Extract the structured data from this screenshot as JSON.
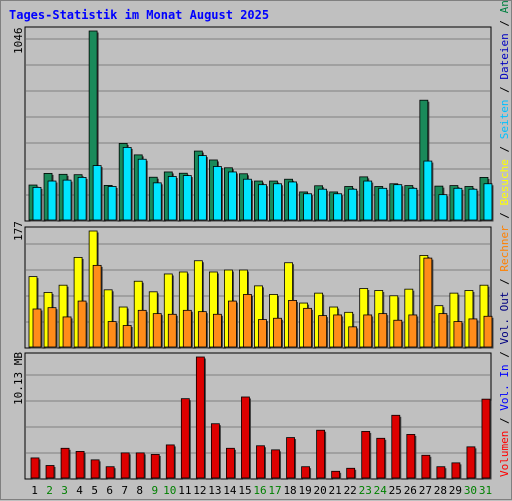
{
  "title": "Tages-Statistik im Monat August 2025",
  "y_labels": {
    "top": "1046",
    "middle": "177",
    "bottom": "10.13 MB"
  },
  "legend": [
    {
      "label": "Volumen",
      "color": "#ff0000"
    },
    {
      "sep": "/"
    },
    {
      "label": "Vol. In",
      "color": "#0000ff"
    },
    {
      "sep": "/"
    },
    {
      "label": "Vol. Out",
      "color": "#000080"
    },
    {
      "sep": "/"
    },
    {
      "label": "Rechner",
      "color": "#ff8000"
    },
    {
      "sep": "/"
    },
    {
      "label": "Besuche",
      "color": "#ffff00"
    },
    {
      "sep": "/"
    },
    {
      "label": "Seiten",
      "color": "#00c0ff"
    },
    {
      "sep": "/"
    },
    {
      "label": "Dateien",
      "color": "#0000c0"
    },
    {
      "sep": "/"
    },
    {
      "label": "Anfragen",
      "color": "#008040"
    }
  ],
  "colors": {
    "anfragen": "#1a8a5a",
    "seiten": "#00e5ff",
    "besuche": "#ffff00",
    "rechner": "#ff8c1a",
    "volumen": "#dd0000",
    "weekday_label": "#000000",
    "weekend_label": "#008000"
  },
  "chart_data": [
    {
      "type": "bar",
      "panel": "Anfragen / Dateien / Seiten",
      "ylabel": "1046",
      "ylim": [
        0,
        1046
      ],
      "x": [
        "1",
        "2",
        "3",
        "4",
        "5",
        "6",
        "7",
        "8",
        "9",
        "10",
        "11",
        "12",
        "13",
        "14",
        "15",
        "16",
        "17",
        "18",
        "19",
        "20",
        "21",
        "22",
        "23",
        "24",
        "25",
        "26",
        "27",
        "28",
        "29",
        "30",
        "31"
      ],
      "weekend": [
        false,
        true,
        true,
        false,
        false,
        false,
        false,
        false,
        true,
        true,
        false,
        false,
        false,
        false,
        false,
        true,
        true,
        false,
        false,
        false,
        false,
        false,
        true,
        true,
        false,
        false,
        false,
        false,
        false,
        true,
        true
      ],
      "series": [
        {
          "name": "Anfragen",
          "values": [
            198,
            262,
            257,
            255,
            1046,
            196,
            427,
            364,
            241,
            270,
            263,
            385,
            336,
            293,
            260,
            220,
            220,
            230,
            160,
            194,
            160,
            190,
            243,
            190,
            205,
            195,
            665,
            192,
            195,
            190,
            240
          ]
        },
        {
          "name": "Seiten",
          "values": [
            185,
            220,
            225,
            240,
            305,
            190,
            405,
            340,
            210,
            245,
            250,
            360,
            300,
            270,
            230,
            200,
            205,
            215,
            150,
            175,
            150,
            175,
            220,
            180,
            200,
            180,
            330,
            145,
            180,
            175,
            205
          ]
        }
      ]
    },
    {
      "type": "bar",
      "panel": "Besuche / Rechner",
      "ylabel": "177",
      "ylim": [
        0,
        177
      ],
      "x": [
        "1",
        "2",
        "3",
        "4",
        "5",
        "6",
        "7",
        "8",
        "9",
        "10",
        "11",
        "12",
        "13",
        "14",
        "15",
        "16",
        "17",
        "18",
        "19",
        "20",
        "21",
        "22",
        "23",
        "24",
        "25",
        "26",
        "27",
        "28",
        "29",
        "30",
        "31"
      ],
      "series": [
        {
          "name": "Besuche",
          "values": [
            108,
            84,
            95,
            137,
            177,
            88,
            62,
            101,
            85,
            112,
            115,
            132,
            115,
            118,
            118,
            94,
            81,
            129,
            68,
            83,
            62,
            54,
            90,
            87,
            79,
            89,
            140,
            64,
            83,
            87,
            95
          ]
        },
        {
          "name": "Rechner",
          "values": [
            59,
            61,
            47,
            71,
            125,
            40,
            34,
            57,
            52,
            51,
            57,
            55,
            51,
            71,
            81,
            43,
            45,
            72,
            60,
            49,
            50,
            32,
            50,
            52,
            42,
            50,
            136,
            52,
            40,
            44,
            48
          ]
        }
      ]
    },
    {
      "type": "bar",
      "panel": "Volumen",
      "ylabel": "10.13 MB",
      "unit": "MB",
      "ylim": [
        0,
        10.13
      ],
      "x": [
        "1",
        "2",
        "3",
        "4",
        "5",
        "6",
        "7",
        "8",
        "9",
        "10",
        "11",
        "12",
        "13",
        "14",
        "15",
        "16",
        "17",
        "18",
        "19",
        "20",
        "21",
        "22",
        "23",
        "24",
        "25",
        "26",
        "27",
        "28",
        "29",
        "30",
        "31"
      ],
      "series": [
        {
          "name": "Volumen",
          "values": [
            1.75,
            1.12,
            2.55,
            2.29,
            1.59,
            1.02,
            2.17,
            2.17,
            2.04,
            2.83,
            6.67,
            10.13,
            4.59,
            2.55,
            6.81,
            2.76,
            2.42,
            3.44,
            1.02,
            4.05,
            0.64,
            0.89,
            3.95,
            3.38,
            5.29,
            3.7,
            1.97,
            1.02,
            1.34,
            2.67,
            6.63
          ]
        }
      ]
    }
  ]
}
